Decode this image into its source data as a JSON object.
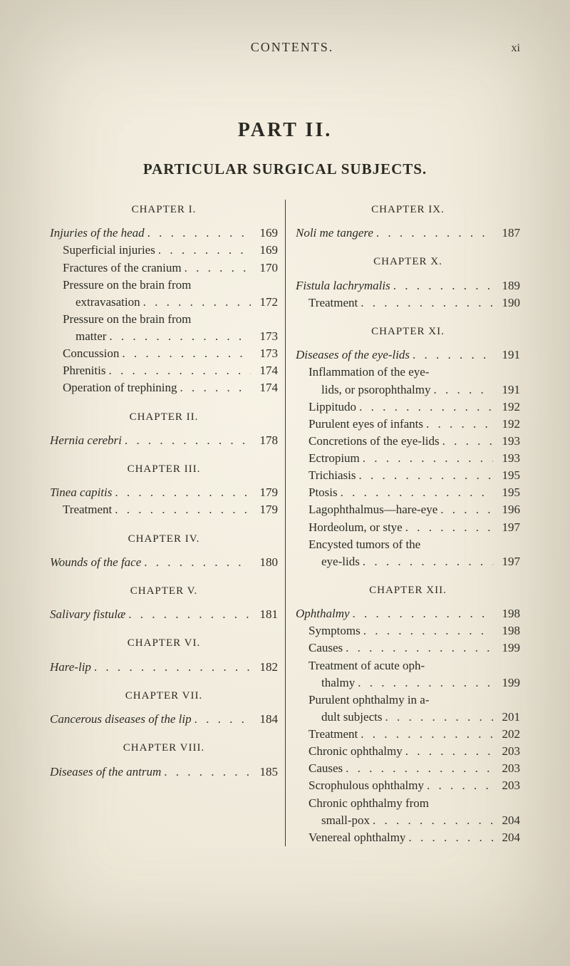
{
  "header": {
    "running_head": "CONTENTS.",
    "page_number": "xi",
    "marginal_left": "",
    "noise1": "",
    "noise2": ""
  },
  "titles": {
    "part": "PART II.",
    "subject": "PARTICULAR SURGICAL SUBJECTS."
  },
  "leader_dots": ". . . . . . . . . . . . . . . . . . . . . . . .",
  "columns": {
    "left": [
      {
        "type": "chap",
        "text": "CHAPTER I.",
        "first": true
      },
      {
        "type": "entry",
        "title": "Injuries of the head",
        "page": "169",
        "italic": true
      },
      {
        "type": "entry",
        "title": "Superficial injuries",
        "page": "169",
        "indent": true
      },
      {
        "type": "entry",
        "title": "Fractures of the cranium",
        "page": "170",
        "indent": true
      },
      {
        "type": "cont",
        "title": "Pressure on the brain from",
        "indent": true
      },
      {
        "type": "entry",
        "title": "extravasation",
        "page": "172",
        "indent2": true
      },
      {
        "type": "cont",
        "title": "Pressure on the brain from",
        "indent": true
      },
      {
        "type": "entry",
        "title": "matter",
        "page": "173",
        "indent2": true
      },
      {
        "type": "entry",
        "title": "Concussion",
        "page": "173",
        "indent": true
      },
      {
        "type": "entry",
        "title": "Phrenitis",
        "page": "174",
        "indent": true
      },
      {
        "type": "entry",
        "title": "Operation of trephining",
        "page": "174",
        "indent": true
      },
      {
        "type": "chap",
        "text": "CHAPTER II."
      },
      {
        "type": "entry",
        "title": "Hernia cerebri",
        "page": "178",
        "italic": true
      },
      {
        "type": "chap",
        "text": "CHAPTER III."
      },
      {
        "type": "entry",
        "title": "Tinea capitis",
        "page": "179",
        "italic": true
      },
      {
        "type": "entry",
        "title": "Treatment",
        "page": "179",
        "indent": true
      },
      {
        "type": "chap",
        "text": "CHAPTER IV."
      },
      {
        "type": "entry",
        "title": "Wounds of the face",
        "page": "180",
        "italic": true
      },
      {
        "type": "chap",
        "text": "CHAPTER V."
      },
      {
        "type": "entry",
        "title": "Salivary fistulæ",
        "page": "181",
        "italic": true
      },
      {
        "type": "chap",
        "text": "CHAPTER VI."
      },
      {
        "type": "entry",
        "title": "Hare-lip",
        "page": "182",
        "italic": true
      },
      {
        "type": "chap",
        "text": "CHAPTER VII."
      },
      {
        "type": "entry",
        "title": "Cancerous diseases of the lip",
        "page": "184",
        "italic": true
      },
      {
        "type": "chap",
        "text": "CHAPTER VIII."
      },
      {
        "type": "entry",
        "title": "Diseases of the antrum",
        "page": "185",
        "italic": true
      }
    ],
    "right": [
      {
        "type": "chap",
        "text": "CHAPTER IX.",
        "first": true
      },
      {
        "type": "entry",
        "title": "Noli me tangere",
        "page": "187",
        "italic": true
      },
      {
        "type": "chap",
        "text": "CHAPTER X."
      },
      {
        "type": "entry",
        "title": "Fistula lachrymalis",
        "page": "189",
        "italic": true
      },
      {
        "type": "entry",
        "title": "Treatment",
        "page": "190",
        "indent": true
      },
      {
        "type": "chap",
        "text": "CHAPTER XI."
      },
      {
        "type": "entry",
        "title": "Diseases of the eye-lids",
        "page": "191",
        "italic": true
      },
      {
        "type": "cont",
        "title": "Inflammation of the eye-",
        "indent": true
      },
      {
        "type": "entry",
        "title": "lids, or psorophthalmy",
        "page": "191",
        "indent2": true
      },
      {
        "type": "entry",
        "title": "Lippitudo",
        "page": "192",
        "indent": true
      },
      {
        "type": "entry",
        "title": "Purulent eyes of infants",
        "page": "192",
        "indent": true
      },
      {
        "type": "entry",
        "title": "Concretions of the eye-lids",
        "page": "193",
        "indent": true
      },
      {
        "type": "entry",
        "title": "Ectropium",
        "page": "193",
        "indent": true
      },
      {
        "type": "entry",
        "title": "Trichiasis",
        "page": "195",
        "indent": true
      },
      {
        "type": "entry",
        "title": "Ptosis",
        "page": "195",
        "indent": true
      },
      {
        "type": "entry",
        "title": "Lagophthalmus—hare-eye",
        "page": "196",
        "indent": true
      },
      {
        "type": "entry",
        "title": "Hordeolum, or stye",
        "page": "197",
        "indent": true
      },
      {
        "type": "cont",
        "title": "Encysted tumors of the",
        "indent": true
      },
      {
        "type": "entry",
        "title": "eye-lids",
        "page": "197",
        "indent2": true
      },
      {
        "type": "chap",
        "text": "CHAPTER XII."
      },
      {
        "type": "entry",
        "title": "Ophthalmy",
        "page": "198",
        "italic": true
      },
      {
        "type": "entry",
        "title": "Symptoms",
        "page": "198",
        "indent": true
      },
      {
        "type": "entry",
        "title": "Causes",
        "page": "199",
        "indent": true
      },
      {
        "type": "cont",
        "title": "Treatment of acute oph-",
        "indent": true
      },
      {
        "type": "entry",
        "title": "thalmy",
        "page": "199",
        "indent2": true
      },
      {
        "type": "cont",
        "title": "Purulent ophthalmy in a-",
        "indent": true
      },
      {
        "type": "entry",
        "title": "dult subjects",
        "page": "201",
        "indent2": true
      },
      {
        "type": "entry",
        "title": "Treatment",
        "page": "202",
        "indent": true
      },
      {
        "type": "entry",
        "title": "Chronic ophthalmy",
        "page": "203",
        "indent": true
      },
      {
        "type": "entry",
        "title": "Causes",
        "page": "203",
        "indent": true
      },
      {
        "type": "entry",
        "title": "Scrophulous ophthalmy",
        "page": "203",
        "indent": true
      },
      {
        "type": "cont",
        "title": "Chronic ophthalmy from",
        "indent": true
      },
      {
        "type": "entry",
        "title": "small-pox",
        "page": "204",
        "indent2": true
      },
      {
        "type": "entry",
        "title": "Venereal ophthalmy",
        "page": "204",
        "indent": true
      }
    ]
  }
}
